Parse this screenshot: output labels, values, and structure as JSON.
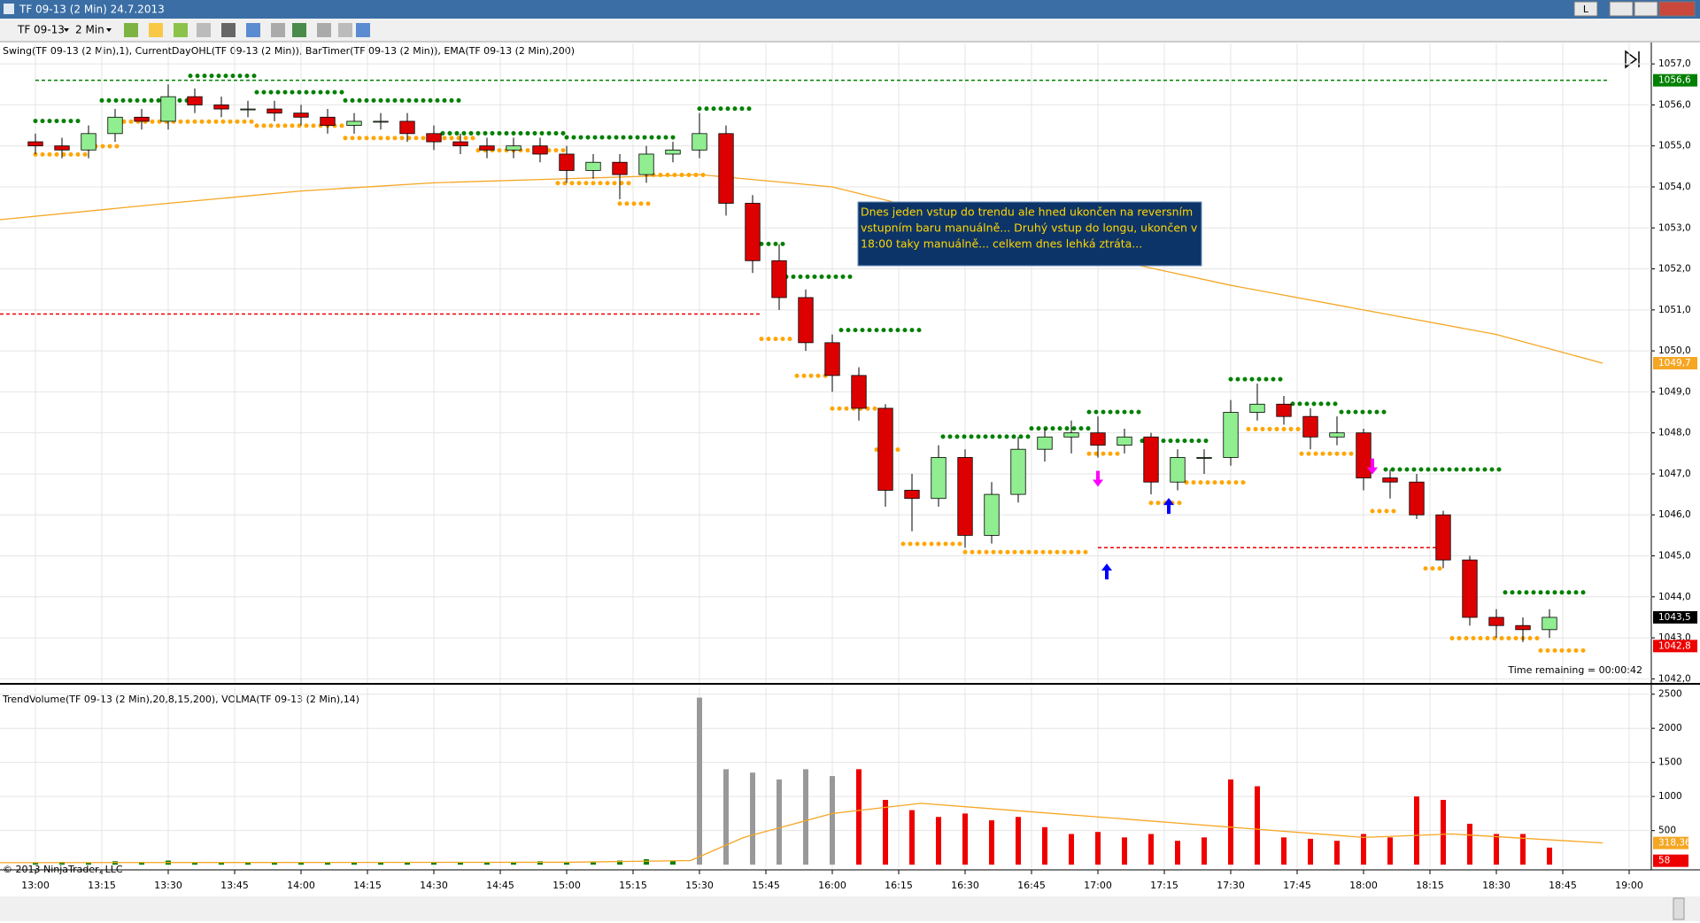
{
  "window": {
    "title": "TF 09-13 (2 Min)  24.7.2013",
    "button": "L"
  },
  "toolbar": {
    "instrument": "TF 09-13",
    "interval": "2 Min"
  },
  "chart_data": [
    {
      "type": "candlestick",
      "title": "Swing(TF 09-13 (2 Min),1), CurrentDayOHL(TF 09-13 (2 Min)), BarTimer(TF 09-13 (2 Min)), EMA(TF 09-13 (2 Min),200)",
      "x": [
        780,
        786,
        792,
        798,
        804,
        810,
        816,
        822,
        828,
        834,
        840,
        846,
        852,
        858,
        864,
        870,
        876,
        882,
        888,
        894,
        900,
        906,
        912,
        918,
        924,
        930,
        936,
        942,
        948,
        954,
        960,
        966,
        972,
        978,
        984,
        990,
        996,
        1002,
        1008,
        1014,
        1020,
        1026,
        1032,
        1038,
        1044,
        1050,
        1056,
        1062,
        1068,
        1074,
        1080,
        1086,
        1092,
        1098,
        1104,
        1110,
        1116,
        1122
      ],
      "open": [
        1055.1,
        1055.0,
        1054.9,
        1055.3,
        1055.7,
        1055.6,
        1056.2,
        1056.0,
        1055.9,
        1055.9,
        1055.8,
        1055.7,
        1055.5,
        1055.6,
        1055.6,
        1055.3,
        1055.1,
        1055.0,
        1054.9,
        1055.0,
        1054.8,
        1054.4,
        1054.6,
        1054.3,
        1054.8,
        1054.9,
        1055.3,
        1053.6,
        1052.2,
        1051.3,
        1050.2,
        1049.4,
        1048.6,
        1046.6,
        1046.4,
        1047.4,
        1045.5,
        1046.5,
        1047.6,
        1047.9,
        1048.0,
        1047.7,
        1047.9,
        1046.8,
        1047.4,
        1047.4,
        1048.5,
        1048.7,
        1048.4,
        1047.9,
        1048.0,
        1046.9,
        1046.8,
        1046.0,
        1044.9,
        1043.5,
        1043.3,
        1043.2
      ],
      "high": [
        1055.3,
        1055.2,
        1055.5,
        1055.9,
        1055.9,
        1056.5,
        1056.4,
        1056.2,
        1056.1,
        1056.1,
        1056.0,
        1055.9,
        1055.8,
        1055.8,
        1055.8,
        1055.5,
        1055.3,
        1055.2,
        1055.2,
        1055.2,
        1055.0,
        1054.8,
        1054.8,
        1055.0,
        1055.1,
        1055.8,
        1055.5,
        1053.8,
        1052.6,
        1051.5,
        1050.4,
        1049.6,
        1048.7,
        1047.0,
        1047.7,
        1047.6,
        1046.8,
        1047.9,
        1048.1,
        1048.3,
        1048.4,
        1048.1,
        1048.0,
        1047.6,
        1047.6,
        1048.8,
        1049.2,
        1048.9,
        1048.6,
        1048.4,
        1048.1,
        1047.1,
        1047.0,
        1046.1,
        1045.0,
        1043.7,
        1043.5,
        1043.7
      ],
      "low": [
        1054.8,
        1054.7,
        1054.7,
        1055.1,
        1055.4,
        1055.4,
        1055.8,
        1055.7,
        1055.7,
        1055.6,
        1055.5,
        1055.3,
        1055.3,
        1055.4,
        1055.1,
        1054.9,
        1054.8,
        1054.7,
        1054.7,
        1054.6,
        1054.1,
        1054.2,
        1053.7,
        1054.1,
        1054.6,
        1054.7,
        1053.3,
        1051.9,
        1051.0,
        1050.0,
        1049.0,
        1048.3,
        1046.2,
        1045.6,
        1046.2,
        1045.2,
        1045.3,
        1046.3,
        1047.3,
        1047.5,
        1047.4,
        1047.5,
        1046.5,
        1046.6,
        1047.0,
        1047.2,
        1048.3,
        1048.2,
        1047.6,
        1047.7,
        1046.6,
        1046.4,
        1045.9,
        1044.7,
        1043.3,
        1043.0,
        1042.9,
        1043.0
      ],
      "close": [
        1055.0,
        1054.9,
        1055.3,
        1055.7,
        1055.6,
        1056.2,
        1056.0,
        1055.9,
        1055.9,
        1055.8,
        1055.7,
        1055.5,
        1055.6,
        1055.6,
        1055.3,
        1055.1,
        1055.0,
        1054.9,
        1055.0,
        1054.8,
        1054.4,
        1054.6,
        1054.3,
        1054.8,
        1054.9,
        1055.3,
        1053.6,
        1052.2,
        1051.3,
        1050.2,
        1049.4,
        1048.6,
        1046.6,
        1046.4,
        1047.4,
        1045.5,
        1046.5,
        1047.6,
        1047.9,
        1048.0,
        1047.7,
        1047.9,
        1046.8,
        1047.4,
        1047.4,
        1048.5,
        1048.7,
        1048.4,
        1047.9,
        1048.0,
        1046.9,
        1046.8,
        1046.0,
        1044.9,
        1043.5,
        1043.3,
        1043.2,
        1043.5
      ],
      "up_color": "#90ee90",
      "down_color": "#dd0000",
      "xlim": [
        772,
        1145
      ],
      "xticks": [
        {
          "value": 780,
          "label": "13:00"
        },
        {
          "value": 795,
          "label": "13:15"
        },
        {
          "value": 810,
          "label": "13:30"
        },
        {
          "value": 825,
          "label": "13:45"
        },
        {
          "value": 840,
          "label": "14:00"
        },
        {
          "value": 855,
          "label": "14:15"
        },
        {
          "value": 870,
          "label": "14:30"
        },
        {
          "value": 885,
          "label": "14:45"
        },
        {
          "value": 900,
          "label": "15:00"
        },
        {
          "value": 915,
          "label": "15:15"
        },
        {
          "value": 930,
          "label": "15:30"
        },
        {
          "value": 945,
          "label": "15:45"
        },
        {
          "value": 960,
          "label": "16:00"
        },
        {
          "value": 975,
          "label": "16:15"
        },
        {
          "value": 990,
          "label": "16:30"
        },
        {
          "value": 1005,
          "label": "16:45"
        },
        {
          "value": 1020,
          "label": "17:00"
        },
        {
          "value": 1035,
          "label": "17:15"
        },
        {
          "value": 1050,
          "label": "17:30"
        },
        {
          "value": 1065,
          "label": "17:45"
        },
        {
          "value": 1080,
          "label": "18:00"
        },
        {
          "value": 1095,
          "label": "18:15"
        },
        {
          "value": 1110,
          "label": "18:30"
        },
        {
          "value": 1125,
          "label": "18:45"
        },
        {
          "value": 1140,
          "label": "19:00"
        }
      ],
      "ylim": [
        1041.9,
        1057.5
      ],
      "yticks": [
        {
          "value": 1042,
          "label": "1042,0"
        },
        {
          "value": 1043,
          "label": "1043,0"
        },
        {
          "value": 1044,
          "label": "1044,0"
        },
        {
          "value": 1045,
          "label": "1045,0"
        },
        {
          "value": 1046,
          "label": "1046,0"
        },
        {
          "value": 1047,
          "label": "1047,0"
        },
        {
          "value": 1048,
          "label": "1048,0"
        },
        {
          "value": 1049,
          "label": "1049,0"
        },
        {
          "value": 1050,
          "label": "1050,0"
        },
        {
          "value": 1051,
          "label": "1051,0"
        },
        {
          "value": 1052,
          "label": "1052,0"
        },
        {
          "value": 1053,
          "label": "1053,0"
        },
        {
          "value": 1054,
          "label": "1054,0"
        },
        {
          "value": 1055,
          "label": "1055,0"
        },
        {
          "value": 1056,
          "label": "1056,0"
        },
        {
          "value": 1057,
          "label": "1057,0"
        }
      ],
      "grid": true,
      "ema": {
        "color": "#f5a623",
        "x": [
          772,
          810,
          840,
          870,
          900,
          930,
          960,
          990,
          1020,
          1050,
          1080,
          1110,
          1134
        ],
        "values": [
          1053.2,
          1053.6,
          1053.9,
          1054.1,
          1054.2,
          1054.3,
          1054.0,
          1053.2,
          1052.3,
          1051.6,
          1051.0,
          1050.4,
          1049.7
        ]
      },
      "levels": [
        {
          "price": 1056.6,
          "x0": 780,
          "x1": 1135,
          "color": "#008000"
        },
        {
          "price": 1050.9,
          "x0": 772,
          "x1": 944,
          "color": "#ee0000"
        },
        {
          "price": 1045.2,
          "x0": 1020,
          "x1": 1097,
          "color": "#ee0000"
        }
      ],
      "swing_color_high": "#008000",
      "swing_color_low": "#ffa500",
      "swing_highs": [
        {
          "x0": 780,
          "x1": 790,
          "price": 1055.5
        },
        {
          "x0": 795,
          "x1": 815,
          "price": 1056.0
        },
        {
          "x0": 815,
          "x1": 830,
          "price": 1056.6
        },
        {
          "x0": 830,
          "x1": 850,
          "price": 1056.2
        },
        {
          "x0": 850,
          "x1": 877,
          "price": 1056.0
        },
        {
          "x0": 872,
          "x1": 900,
          "price": 1055.2
        },
        {
          "x0": 900,
          "x1": 925,
          "price": 1055.1
        },
        {
          "x0": 930,
          "x1": 942,
          "price": 1055.8
        },
        {
          "x0": 944,
          "x1": 950,
          "price": 1052.5
        },
        {
          "x0": 948,
          "x1": 965,
          "price": 1051.7
        },
        {
          "x0": 962,
          "x1": 980,
          "price": 1050.4
        },
        {
          "x0": 985,
          "x1": 1005,
          "price": 1047.8
        },
        {
          "x0": 1005,
          "x1": 1018,
          "price": 1048.0
        },
        {
          "x0": 1018,
          "x1": 1030,
          "price": 1048.4
        },
        {
          "x0": 1030,
          "x1": 1045,
          "price": 1047.7
        },
        {
          "x0": 1050,
          "x1": 1062,
          "price": 1049.2
        },
        {
          "x0": 1064,
          "x1": 1075,
          "price": 1048.6
        },
        {
          "x0": 1075,
          "x1": 1085,
          "price": 1048.4
        },
        {
          "x0": 1085,
          "x1": 1112,
          "price": 1047.0
        },
        {
          "x0": 1112,
          "x1": 1130,
          "price": 1044.0
        }
      ],
      "swing_lows": [
        {
          "x0": 780,
          "x1": 792,
          "price": 1054.9
        },
        {
          "x0": 792,
          "x1": 800,
          "price": 1055.1
        },
        {
          "x0": 800,
          "x1": 830,
          "price": 1055.7
        },
        {
          "x0": 830,
          "x1": 850,
          "price": 1055.6
        },
        {
          "x0": 850,
          "x1": 880,
          "price": 1055.3
        },
        {
          "x0": 880,
          "x1": 900,
          "price": 1055.0
        },
        {
          "x0": 898,
          "x1": 915,
          "price": 1054.2
        },
        {
          "x0": 912,
          "x1": 920,
          "price": 1053.7
        },
        {
          "x0": 918,
          "x1": 932,
          "price": 1054.4
        },
        {
          "x0": 944,
          "x1": 952,
          "price": 1050.4
        },
        {
          "x0": 952,
          "x1": 960,
          "price": 1049.5
        },
        {
          "x0": 960,
          "x1": 970,
          "price": 1048.7
        },
        {
          "x0": 970,
          "x1": 976,
          "price": 1047.7
        },
        {
          "x0": 976,
          "x1": 990,
          "price": 1045.4
        },
        {
          "x0": 990,
          "x1": 1018,
          "price": 1045.2
        },
        {
          "x0": 1018,
          "x1": 1026,
          "price": 1047.6
        },
        {
          "x0": 1032,
          "x1": 1040,
          "price": 1046.4
        },
        {
          "x0": 1040,
          "x1": 1054,
          "price": 1046.9
        },
        {
          "x0": 1054,
          "x1": 1066,
          "price": 1048.2
        },
        {
          "x0": 1066,
          "x1": 1078,
          "price": 1047.6
        },
        {
          "x0": 1082,
          "x1": 1088,
          "price": 1046.2
        },
        {
          "x0": 1094,
          "x1": 1098,
          "price": 1044.8
        },
        {
          "x0": 1100,
          "x1": 1120,
          "price": 1043.1
        },
        {
          "x0": 1120,
          "x1": 1130,
          "price": 1042.8
        }
      ],
      "arrows": [
        {
          "x": 1020,
          "price": 1046.6,
          "dir": "down",
          "color": "#ff00ff"
        },
        {
          "x": 1022,
          "price": 1044.9,
          "dir": "up",
          "color": "#0000ff"
        },
        {
          "x": 1036,
          "price": 1046.5,
          "dir": "up",
          "color": "#0000ff"
        },
        {
          "x": 1082,
          "price": 1046.9,
          "dir": "down",
          "color": "#ff00ff"
        }
      ],
      "price_labels": [
        {
          "value": 1056.6,
          "label": "1056,6",
          "color": "#008000"
        },
        {
          "value": 1049.7,
          "label": "1049,7",
          "color": "#f5a623"
        },
        {
          "value": 1043.5,
          "label": "1043,5",
          "color": "#000000"
        },
        {
          "value": 1042.8,
          "label": "1042,8",
          "color": "#ee0000"
        }
      ],
      "annotation": {
        "lines": [
          "Dnes jeden vstup do trendu ale hned ukončen na reversním",
          "vstupním baru manuálně... Druhý vstup do longu, ukončen v",
          "18:00 taky manuálně... celkem dnes lehká ztráta..."
        ]
      },
      "timer": "Time remaining = 00:00:42"
    },
    {
      "type": "bar",
      "title": "TrendVolume(TF 09-13 (2 Min),20,8,15,200), VOLMA(TF 09-13 (2 Min),14)",
      "x": [
        780,
        786,
        792,
        798,
        804,
        810,
        816,
        822,
        828,
        834,
        840,
        846,
        852,
        858,
        864,
        870,
        876,
        882,
        888,
        894,
        900,
        906,
        912,
        918,
        924,
        930,
        936,
        942,
        948,
        954,
        960,
        966,
        972,
        978,
        984,
        990,
        996,
        1002,
        1008,
        1014,
        1020,
        1026,
        1032,
        1038,
        1044,
        1050,
        1056,
        1062,
        1068,
        1074,
        1080,
        1086,
        1092,
        1098,
        1104,
        1110,
        1116,
        1122
      ],
      "values": [
        30,
        40,
        30,
        50,
        40,
        60,
        40,
        30,
        30,
        30,
        30,
        30,
        40,
        30,
        40,
        30,
        40,
        30,
        40,
        50,
        40,
        40,
        60,
        80,
        60,
        2450,
        1400,
        1350,
        1250,
        1400,
        1300,
        1400,
        950,
        800,
        700,
        750,
        650,
        700,
        550,
        450,
        480,
        400,
        450,
        350,
        400,
        1250,
        1150,
        400,
        380,
        350,
        450,
        400,
        1000,
        950,
        600,
        450,
        450,
        250
      ],
      "colors": [
        "#008000",
        "#008000",
        "#008000",
        "#008000",
        "#008000",
        "#008000",
        "#008000",
        "#008000",
        "#008000",
        "#008000",
        "#008000",
        "#008000",
        "#008000",
        "#008000",
        "#008000",
        "#008000",
        "#008000",
        "#008000",
        "#008000",
        "#008000",
        "#008000",
        "#008000",
        "#008000",
        "#008000",
        "#008000",
        "#999999",
        "#999999",
        "#999999",
        "#999999",
        "#999999",
        "#999999",
        "#ee0000",
        "#ee0000",
        "#ee0000",
        "#ee0000",
        "#ee0000",
        "#ee0000",
        "#ee0000",
        "#ee0000",
        "#ee0000",
        "#ee0000",
        "#ee0000",
        "#ee0000",
        "#ee0000",
        "#ee0000",
        "#ee0000",
        "#ee0000",
        "#ee0000",
        "#ee0000",
        "#ee0000",
        "#ee0000",
        "#ee0000",
        "#ee0000",
        "#ee0000",
        "#ee0000",
        "#ee0000",
        "#ee0000",
        "#ee0000"
      ],
      "ylim": [
        -50,
        2600
      ],
      "yticks": [
        500,
        1000,
        1500,
        2000,
        2500
      ],
      "grid": true,
      "volma": {
        "color": "#f5a623",
        "x": [
          772,
          900,
          928,
          940,
          960,
          980,
          1000,
          1040,
          1080,
          1100,
          1134
        ],
        "values": [
          30,
          35,
          60,
          400,
          750,
          900,
          800,
          600,
          400,
          450,
          318.36
        ]
      },
      "value_labels": [
        {
          "value": 318.36,
          "label": "318,36",
          "color": "#f5a623"
        },
        {
          "value": 58,
          "label": "58",
          "color": "#ee0000"
        }
      ]
    }
  ],
  "footer": {
    "copyright": "© 2013 NinjaTrader, LLC"
  }
}
